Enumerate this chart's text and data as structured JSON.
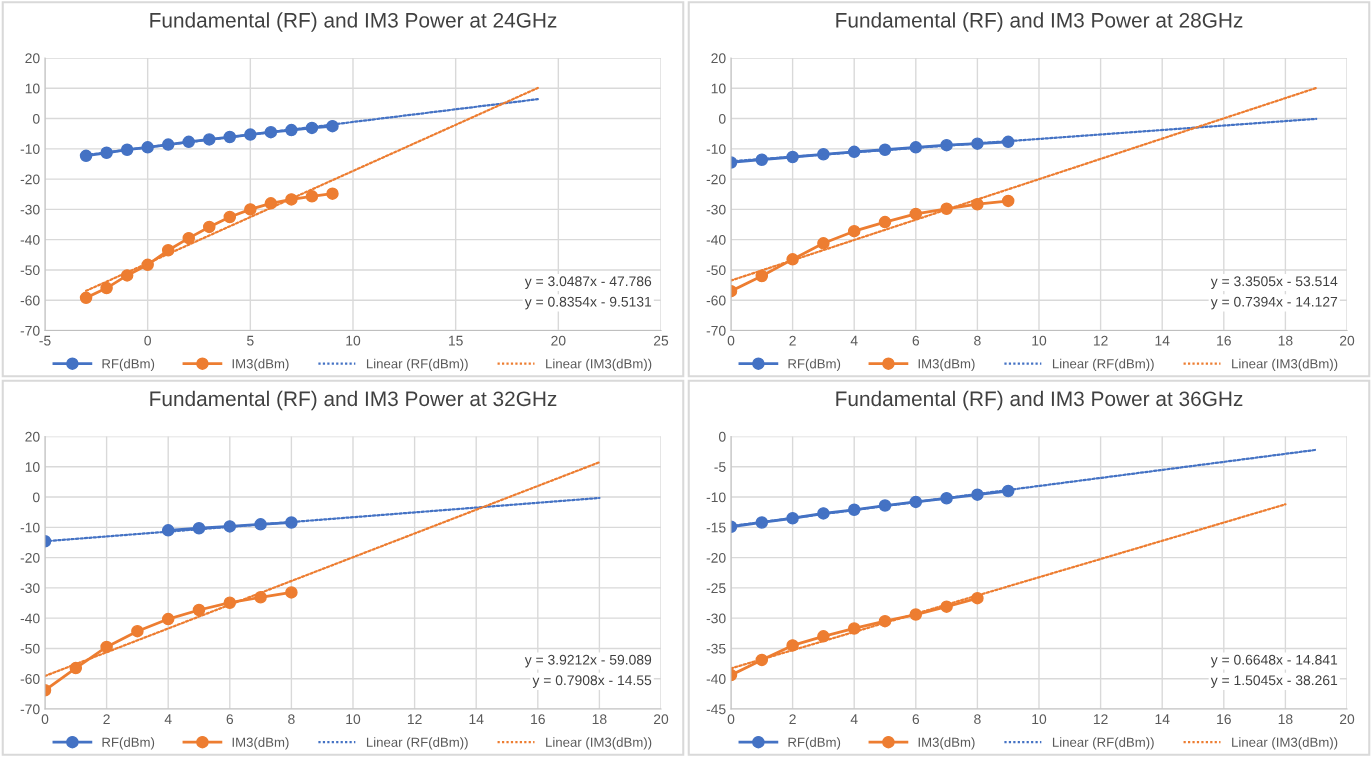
{
  "chart_data": [
    {
      "type": "line",
      "title": "Fundamental (RF) and IM3 Power at 24GHz",
      "x": [
        -3,
        -2,
        -1,
        0,
        1,
        2,
        3,
        4,
        5,
        6,
        7,
        8,
        9
      ],
      "xlim": [
        -5,
        25
      ],
      "xticks": [
        -5,
        0,
        5,
        10,
        15,
        20,
        25
      ],
      "ylim": [
        -70,
        20
      ],
      "yticks": [
        -70,
        -60,
        -50,
        -40,
        -30,
        -20,
        -10,
        0,
        10,
        20
      ],
      "grid": true,
      "legend": "bottom",
      "marker": "circle",
      "series": [
        {
          "name": "RF(dBm)",
          "color": "#4472c4",
          "values": [
            -12.3,
            -11.3,
            -10.3,
            -9.5,
            -8.6,
            -7.7,
            -6.9,
            -6.1,
            -5.3,
            -4.5,
            -3.8,
            -3.1,
            -2.5
          ]
        },
        {
          "name": "IM3(dBm)",
          "color": "#ed7d31",
          "values": [
            -59.2,
            -56,
            -51.8,
            -48.3,
            -43.5,
            -39.5,
            -35.8,
            -32.5,
            -30,
            -28,
            -26.7,
            -25.7,
            -24.8
          ]
        },
        {
          "name": "Linear (RF(dBm))",
          "color": "#4472c4",
          "marker": "none",
          "line_style": "dotted",
          "x": [
            -3,
            19
          ],
          "values": [
            -12,
            6.4
          ]
        },
        {
          "name": "Linear (IM3(dBm))",
          "color": "#ed7d31",
          "marker": "none",
          "line_style": "dotted",
          "x": [
            -3,
            19
          ],
          "values": [
            -56.9,
            10.1
          ]
        }
      ],
      "annotations": [
        "y = 3.0487x - 47.786",
        "y = 0.8354x - 9.5131"
      ]
    },
    {
      "type": "line",
      "title": "Fundamental (RF) and IM3 Power at 28GHz",
      "x": [
        0,
        1,
        2,
        3,
        4,
        5,
        6,
        7,
        8,
        9
      ],
      "xlim": [
        0,
        20
      ],
      "xticks": [
        0,
        2,
        4,
        6,
        8,
        10,
        12,
        14,
        16,
        18,
        20
      ],
      "ylim": [
        -70,
        20
      ],
      "yticks": [
        -70,
        -60,
        -50,
        -40,
        -30,
        -20,
        -10,
        0,
        10,
        20
      ],
      "grid": true,
      "legend": "bottom",
      "marker": "circle",
      "series": [
        {
          "name": "RF(dBm)",
          "color": "#4472c4",
          "values": [
            -14.5,
            -13.6,
            -12.7,
            -11.8,
            -11,
            -10.3,
            -9.5,
            -8.8,
            -8.3,
            -7.7
          ]
        },
        {
          "name": "IM3(dBm)",
          "color": "#ed7d31",
          "values": [
            -57,
            -52,
            -46.5,
            -41.2,
            -37.2,
            -34.2,
            -31.5,
            -29.8,
            -28.3,
            -27.2
          ]
        },
        {
          "name": "Linear (RF(dBm))",
          "color": "#4472c4",
          "marker": "none",
          "line_style": "dotted",
          "x": [
            0,
            19
          ],
          "values": [
            -14.1,
            -0.1
          ]
        },
        {
          "name": "Linear (IM3(dBm))",
          "color": "#ed7d31",
          "marker": "none",
          "line_style": "dotted",
          "x": [
            0,
            19
          ],
          "values": [
            -53.5,
            10.1
          ]
        }
      ],
      "annotations": [
        "y = 3.3505x - 53.514",
        "y = 0.7394x - 14.127"
      ]
    },
    {
      "type": "line",
      "title": "Fundamental (RF) and IM3 Power at 32GHz",
      "x": [
        0,
        1,
        2,
        3,
        4,
        5,
        6,
        7,
        8
      ],
      "xlim": [
        0,
        20
      ],
      "xticks": [
        0,
        2,
        4,
        6,
        8,
        10,
        12,
        14,
        16,
        18,
        20
      ],
      "ylim": [
        -70,
        20
      ],
      "yticks": [
        -70,
        -60,
        -50,
        -40,
        -30,
        -20,
        -10,
        0,
        10,
        20
      ],
      "grid": true,
      "legend": "bottom",
      "marker": "circle",
      "series": [
        {
          "name": "RF(dBm)",
          "color": "#4472c4",
          "values": [
            -14.6,
            null,
            null,
            null,
            -11,
            -10.3,
            -9.7,
            -9,
            -8.4
          ]
        },
        {
          "name": "IM3(dBm)",
          "color": "#ed7d31",
          "values": [
            -63.8,
            -56.5,
            -49.5,
            -44.3,
            -40.3,
            -37.3,
            -34.9,
            -33.1,
            -31.5
          ]
        },
        {
          "name": "Linear (RF(dBm))",
          "color": "#4472c4",
          "marker": "none",
          "line_style": "dotted",
          "x": [
            0,
            18
          ],
          "values": [
            -14.6,
            -0.3
          ]
        },
        {
          "name": "Linear (IM3(dBm))",
          "color": "#ed7d31",
          "marker": "none",
          "line_style": "dotted",
          "x": [
            0,
            18
          ],
          "values": [
            -59.1,
            11.5
          ]
        }
      ],
      "annotations": [
        "y = 3.9212x - 59.089",
        "y = 0.7908x - 14.55"
      ]
    },
    {
      "type": "line",
      "title": "Fundamental (RF) and IM3 Power at 36GHz",
      "x": [
        0,
        1,
        2,
        3,
        4,
        5,
        6,
        7,
        8,
        9
      ],
      "xlim": [
        0,
        20
      ],
      "xticks": [
        0,
        2,
        4,
        6,
        8,
        10,
        12,
        14,
        16,
        18,
        20
      ],
      "ylim": [
        -45,
        0
      ],
      "yticks": [
        -45,
        -40,
        -35,
        -30,
        -25,
        -20,
        -15,
        -10,
        -5,
        0
      ],
      "grid": true,
      "legend": "bottom",
      "marker": "circle",
      "series": [
        {
          "name": "RF(dBm)",
          "color": "#4472c4",
          "values": [
            -14.9,
            -14.2,
            -13.5,
            -12.7,
            -12.1,
            -11.4,
            -10.8,
            -10.2,
            -9.6,
            -9.0
          ]
        },
        {
          "name": "IM3(dBm)",
          "color": "#ed7d31",
          "values": [
            -39.4,
            -36.9,
            -34.5,
            -33,
            -31.7,
            -30.5,
            -29.4,
            -28.1,
            -26.7,
            null
          ]
        },
        {
          "name": "Linear (RF(dBm))",
          "color": "#4472c4",
          "marker": "none",
          "line_style": "dotted",
          "x": [
            0,
            19
          ],
          "values": [
            -14.8,
            -2.2
          ]
        },
        {
          "name": "Linear (IM3(dBm))",
          "color": "#ed7d31",
          "marker": "none",
          "line_style": "dotted",
          "x": [
            0,
            18
          ],
          "values": [
            -38.3,
            -11.2
          ]
        }
      ],
      "annotations": [
        "y = 0.6648x - 14.841",
        "y = 1.5045x - 38.261"
      ]
    }
  ]
}
